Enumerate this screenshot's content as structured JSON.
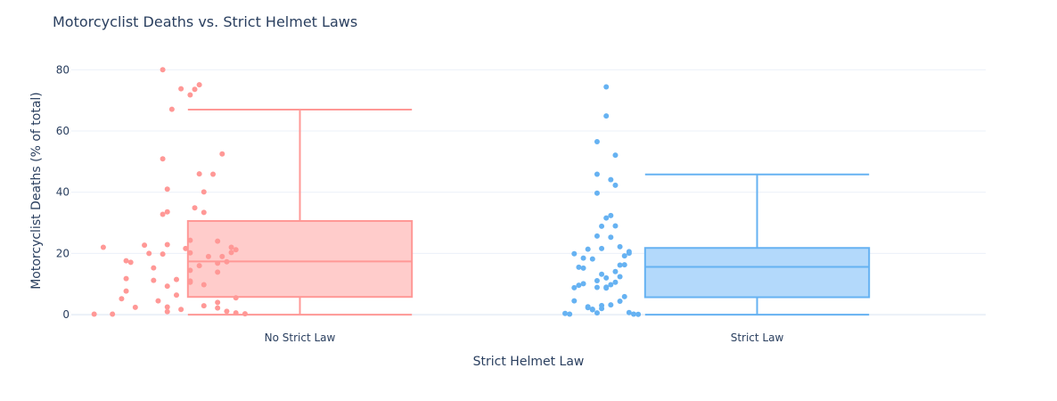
{
  "chart_data": {
    "type": "box",
    "title": "Motorcyclist Deaths vs. Strict Helmet Laws",
    "xlabel": "Strict Helmet Law",
    "ylabel": "Motorcyclist Deaths (% of total)",
    "ylim": [
      -2,
      83
    ],
    "yticks": [
      0,
      20,
      40,
      60,
      80
    ],
    "categories": [
      "No Strict Law",
      "Strict Law"
    ],
    "grid": true,
    "legend": false,
    "series": [
      {
        "category": "No Strict Law",
        "color": "#ff9896",
        "fill": "#ffcccb",
        "box": {
          "lowerfence": 0.0,
          "q1": 5.8,
          "median": 17.4,
          "q3": 30.6,
          "upperfence": 67.0
        },
        "points": [
          [
            -0.45,
            0.2
          ],
          [
            -0.41,
            0.2
          ],
          [
            -0.39,
            5.2
          ],
          [
            -0.38,
            7.7
          ],
          [
            -0.43,
            22.0
          ],
          [
            -0.38,
            17.6
          ],
          [
            -0.37,
            17.1
          ],
          [
            -0.38,
            11.8
          ],
          [
            -0.36,
            2.4
          ],
          [
            -0.33,
            20.0
          ],
          [
            -0.34,
            22.7
          ],
          [
            -0.31,
            4.5
          ],
          [
            -0.32,
            11.2
          ],
          [
            -0.29,
            9.3
          ],
          [
            -0.3,
            19.8
          ],
          [
            -0.29,
            22.9
          ],
          [
            -0.3,
            32.8
          ],
          [
            -0.29,
            33.6
          ],
          [
            -0.29,
            41.0
          ],
          [
            -0.3,
            50.9
          ],
          [
            -0.28,
            67.1
          ],
          [
            -0.3,
            80.0
          ],
          [
            -0.26,
            73.8
          ],
          [
            -0.24,
            71.8
          ],
          [
            -0.23,
            73.6
          ],
          [
            -0.22,
            75.1
          ],
          [
            -0.22,
            46.0
          ],
          [
            -0.19,
            45.9
          ],
          [
            -0.23,
            34.9
          ],
          [
            -0.24,
            24.3
          ],
          [
            -0.25,
            21.6
          ],
          [
            -0.24,
            20.2
          ],
          [
            -0.27,
            11.5
          ],
          [
            -0.24,
            11.0
          ],
          [
            -0.27,
            6.4
          ],
          [
            -0.26,
            1.7
          ],
          [
            -0.29,
            1.0
          ],
          [
            -0.29,
            2.5
          ],
          [
            -0.24,
            10.6
          ],
          [
            -0.22,
            16.0
          ],
          [
            -0.2,
            19.0
          ],
          [
            -0.21,
            9.8
          ],
          [
            -0.21,
            2.9
          ],
          [
            -0.21,
            40.1
          ],
          [
            -0.21,
            33.4
          ],
          [
            -0.17,
            52.5
          ],
          [
            -0.18,
            24.0
          ],
          [
            -0.17,
            19.0
          ],
          [
            -0.18,
            16.8
          ],
          [
            -0.18,
            13.9
          ],
          [
            -0.15,
            20.3
          ],
          [
            -0.15,
            22.0
          ],
          [
            -0.14,
            21.2
          ],
          [
            -0.16,
            17.3
          ],
          [
            -0.18,
            4.0
          ],
          [
            -0.18,
            2.2
          ],
          [
            -0.14,
            5.5
          ],
          [
            -0.14,
            0.6
          ],
          [
            -0.16,
            1.1
          ],
          [
            -0.12,
            0.3
          ],
          [
            -0.24,
            14.5
          ],
          [
            -0.32,
            15.3
          ]
        ]
      },
      {
        "category": "Strict Law",
        "color": "#66b2f2",
        "fill": "#b3d9fb",
        "box": {
          "lowerfence": 0.0,
          "q1": 5.7,
          "median": 15.6,
          "q3": 21.8,
          "upperfence": 45.8
        },
        "points": [
          [
            -0.42,
            0.4
          ],
          [
            -0.41,
            0.2
          ],
          [
            -0.4,
            4.5
          ],
          [
            -0.4,
            8.8
          ],
          [
            -0.39,
            15.5
          ],
          [
            -0.4,
            19.9
          ],
          [
            -0.38,
            15.2
          ],
          [
            -0.38,
            10.1
          ],
          [
            -0.37,
            2.3
          ],
          [
            -0.38,
            18.5
          ],
          [
            -0.37,
            21.4
          ],
          [
            -0.36,
            1.6
          ],
          [
            -0.35,
            8.9
          ],
          [
            -0.35,
            11.1
          ],
          [
            -0.35,
            25.7
          ],
          [
            -0.34,
            28.9
          ],
          [
            -0.34,
            21.6
          ],
          [
            -0.35,
            39.7
          ],
          [
            -0.35,
            45.9
          ],
          [
            -0.35,
            56.5
          ],
          [
            -0.33,
            64.9
          ],
          [
            -0.33,
            74.4
          ],
          [
            -0.33,
            31.6
          ],
          [
            -0.32,
            32.4
          ],
          [
            -0.32,
            44.1
          ],
          [
            -0.31,
            42.3
          ],
          [
            -0.31,
            52.1
          ],
          [
            -0.31,
            29.0
          ],
          [
            -0.3,
            22.2
          ],
          [
            -0.3,
            16.2
          ],
          [
            -0.29,
            19.2
          ],
          [
            -0.28,
            20.6
          ],
          [
            -0.28,
            20.1
          ],
          [
            -0.29,
            16.3
          ],
          [
            -0.3,
            12.4
          ],
          [
            -0.31,
            10.6
          ],
          [
            -0.32,
            9.8
          ],
          [
            -0.33,
            9.0
          ],
          [
            -0.33,
            8.7
          ],
          [
            -0.34,
            3.0
          ],
          [
            -0.34,
            2.0
          ],
          [
            -0.35,
            0.6
          ],
          [
            -0.36,
            1.8
          ],
          [
            -0.37,
            2.6
          ],
          [
            -0.32,
            3.2
          ],
          [
            -0.3,
            4.4
          ],
          [
            -0.29,
            5.9
          ],
          [
            -0.28,
            0.7
          ],
          [
            -0.27,
            0.2
          ],
          [
            -0.26,
            0.1
          ],
          [
            -0.31,
            14.1
          ],
          [
            -0.36,
            18.2
          ],
          [
            -0.34,
            13.2
          ],
          [
            -0.32,
            25.3
          ],
          [
            -0.39,
            9.6
          ],
          [
            -0.33,
            12.0
          ]
        ]
      }
    ]
  }
}
